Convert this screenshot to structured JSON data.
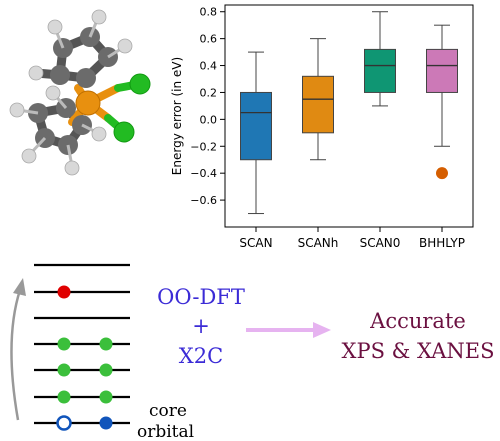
{
  "chart_data": {
    "type": "box",
    "categories": [
      "SCAN",
      "SCANh",
      "SCAN0",
      "BHHLYP"
    ],
    "ylabel": "Energy error (in eV)",
    "ylim": [
      -0.8,
      0.85
    ],
    "yticks": [
      "0.8",
      "0.6",
      "0.4",
      "0.2",
      "0.0",
      "−0.2",
      "−0.4",
      "−0.6"
    ],
    "ytick_values": [
      0.8,
      0.6,
      0.4,
      0.2,
      0.0,
      -0.2,
      -0.4,
      -0.6
    ],
    "boxes": [
      {
        "name": "SCAN",
        "whisker_low": -0.7,
        "q1": -0.3,
        "median": 0.05,
        "q3": 0.2,
        "whisker_high": 0.5,
        "outliers": [],
        "color": "#1f77b4"
      },
      {
        "name": "SCANh",
        "whisker_low": -0.3,
        "q1": -0.1,
        "median": 0.15,
        "q3": 0.32,
        "whisker_high": 0.6,
        "outliers": [],
        "color": "#e08a12"
      },
      {
        "name": "SCAN0",
        "whisker_low": 0.1,
        "q1": 0.2,
        "median": 0.4,
        "q3": 0.52,
        "whisker_high": 0.8,
        "outliers": [],
        "color": "#0f9673"
      },
      {
        "name": "BHHLYP",
        "whisker_low": -0.2,
        "q1": 0.2,
        "median": 0.4,
        "q3": 0.52,
        "whisker_high": 0.7,
        "outliers": [
          -0.4
        ],
        "color": "#cc79b7"
      }
    ],
    "outlier_color": "#d55e00",
    "grid": false
  },
  "diagram": {
    "method_line1": "OO-DFT",
    "method_plus": "+",
    "method_line2": "X2C",
    "result_line1": "Accurate",
    "result_line2": "XPS & XANES",
    "core_label_line1": "core",
    "core_label_line2": "orbital",
    "method_color": "#3b2bd6",
    "result_color": "#6b1040",
    "arrow_color": "#e6b3f0",
    "occupied_color": "#3bbf3b",
    "excited_color": "#e00000",
    "core_electron_color": "#1155bb"
  },
  "molecule": {
    "metal_color": "#e8900f",
    "chlorine_color": "#22bb22",
    "carbon_color": "#6b6b6b",
    "hydrogen_color": "#d8d8d8"
  }
}
